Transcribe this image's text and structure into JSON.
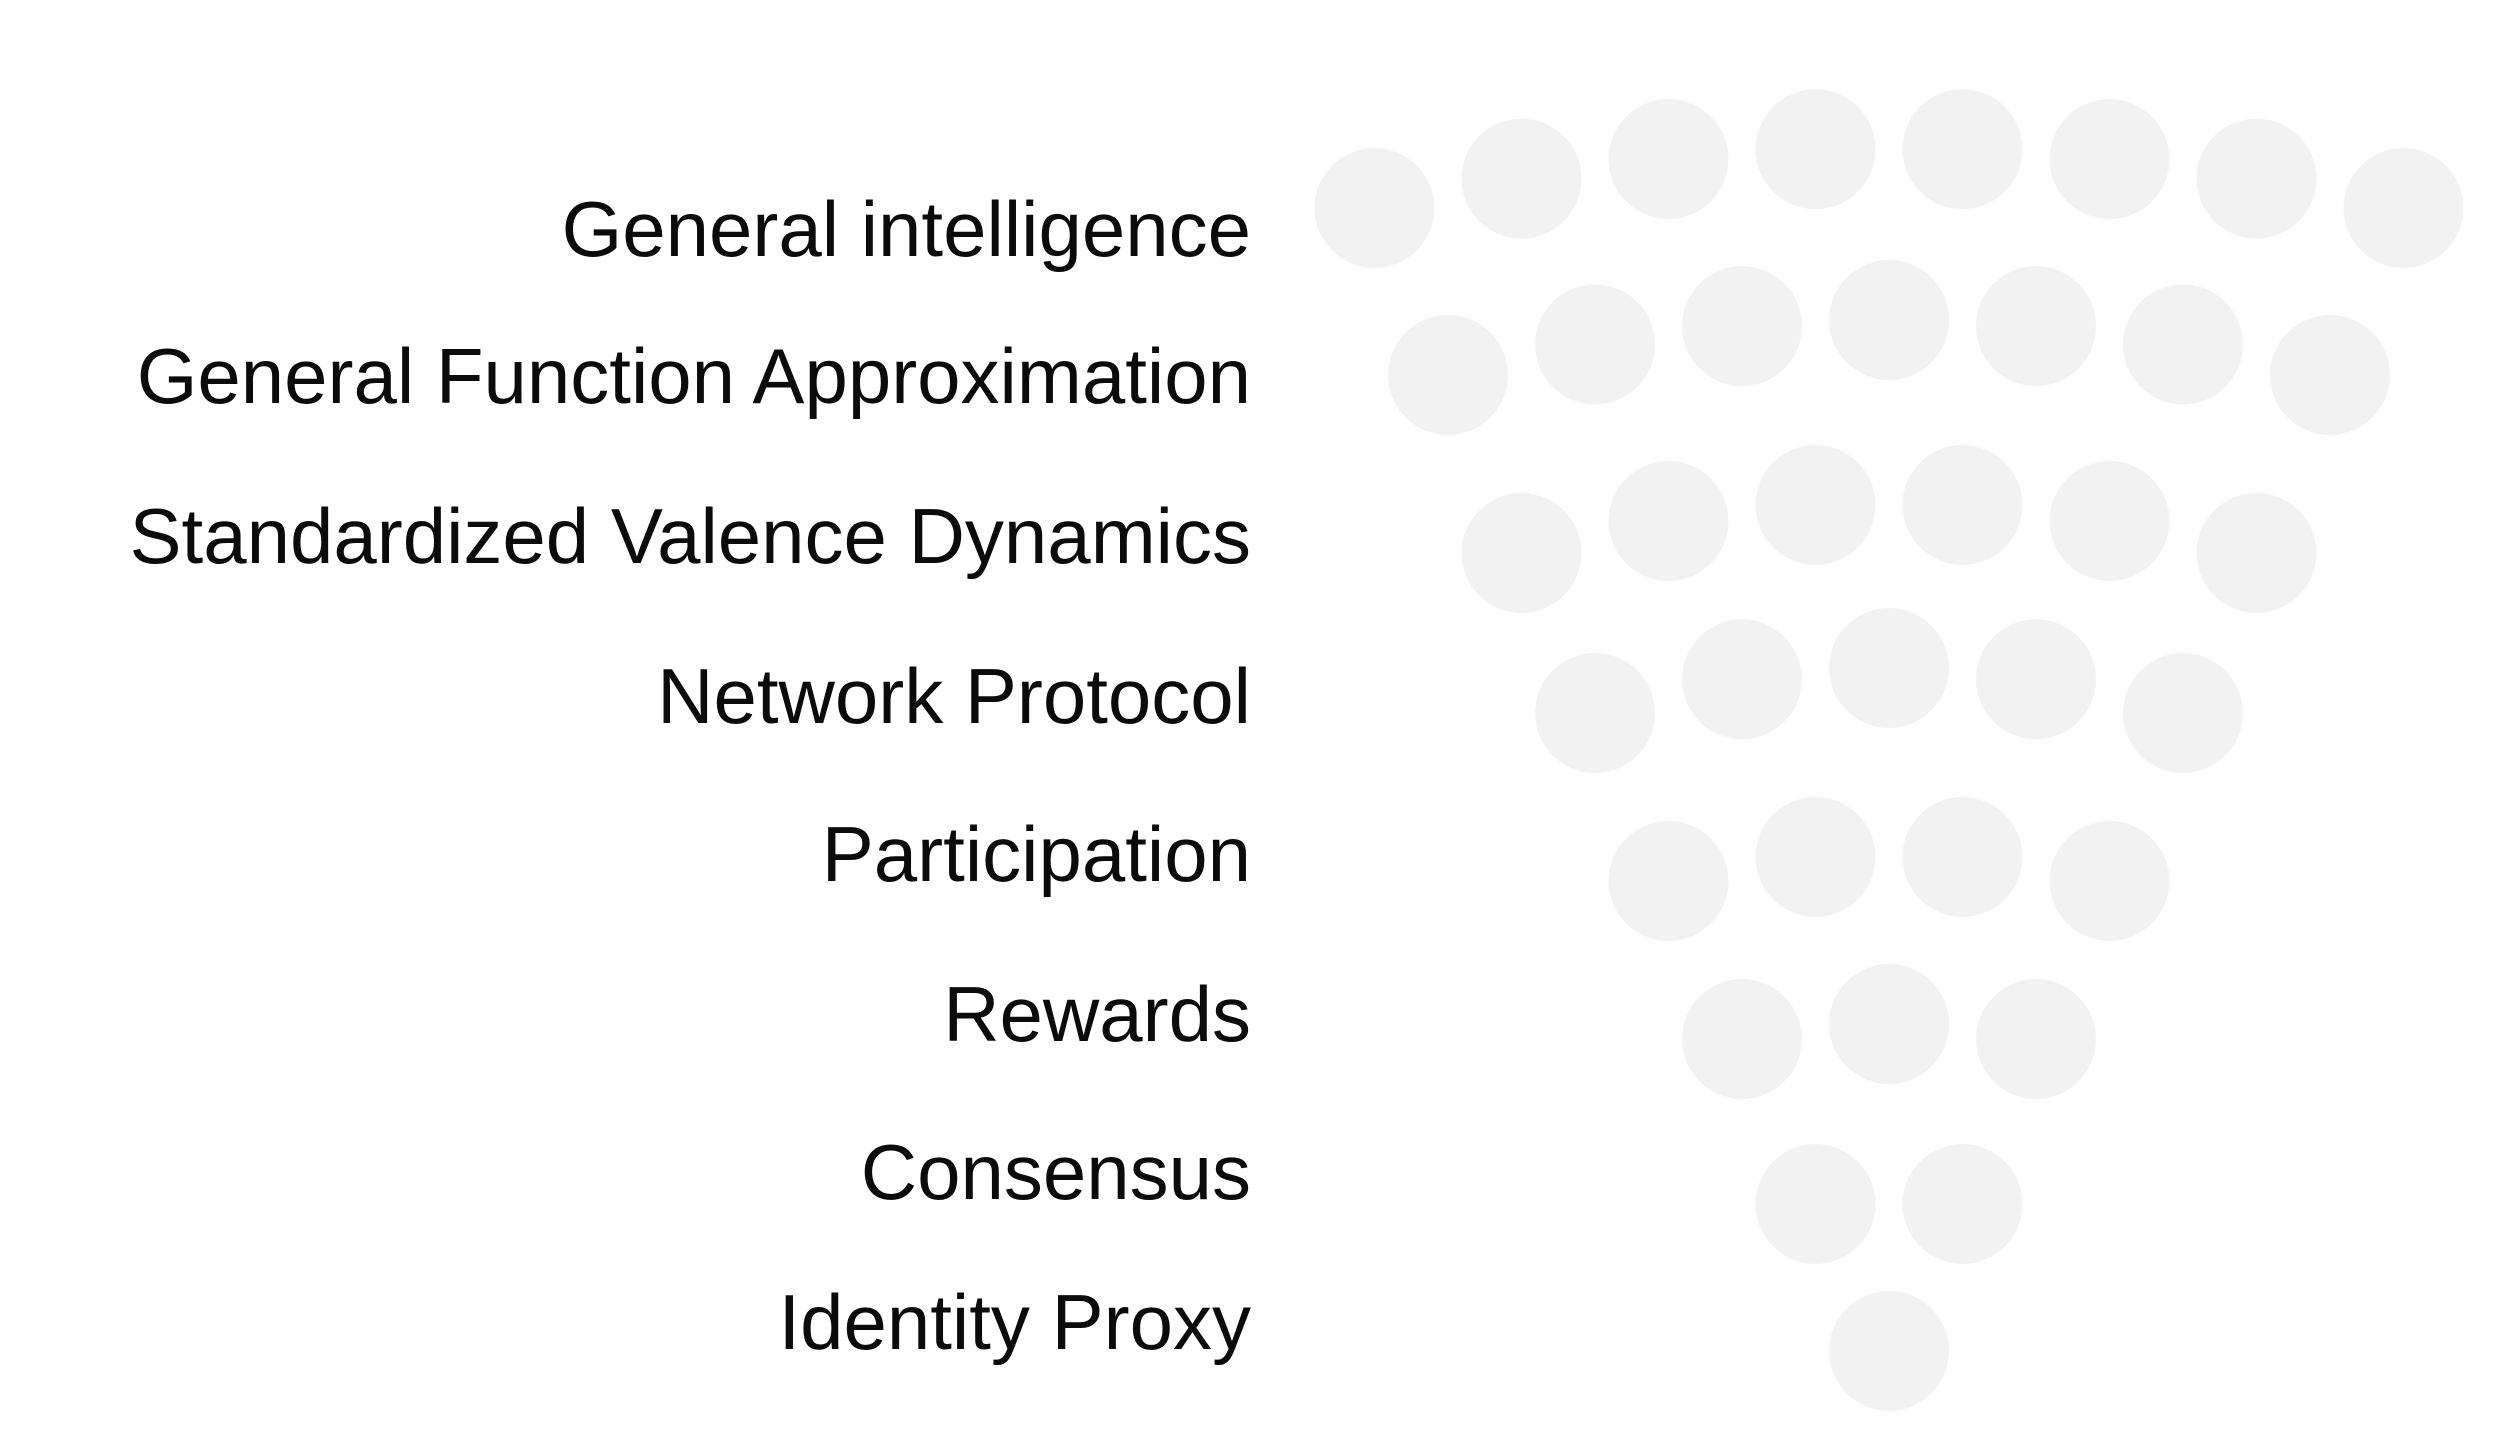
{
  "diagram": {
    "dot_color": "#f2f2f2",
    "text_color": "#0b0b0b",
    "layers": [
      {
        "label": "General intelligence",
        "dots": 8
      },
      {
        "label": "General Function Approximation",
        "dots": 7
      },
      {
        "label": "Standardized Valence Dynamics",
        "dots": 6
      },
      {
        "label": "Network Protocol",
        "dots": 5
      },
      {
        "label": "Participation",
        "dots": 4
      },
      {
        "label": "Rewards",
        "dots": 3
      },
      {
        "label": "Consensus",
        "dots": 2
      },
      {
        "label": "Identity Proxy",
        "dots": 1
      }
    ]
  }
}
